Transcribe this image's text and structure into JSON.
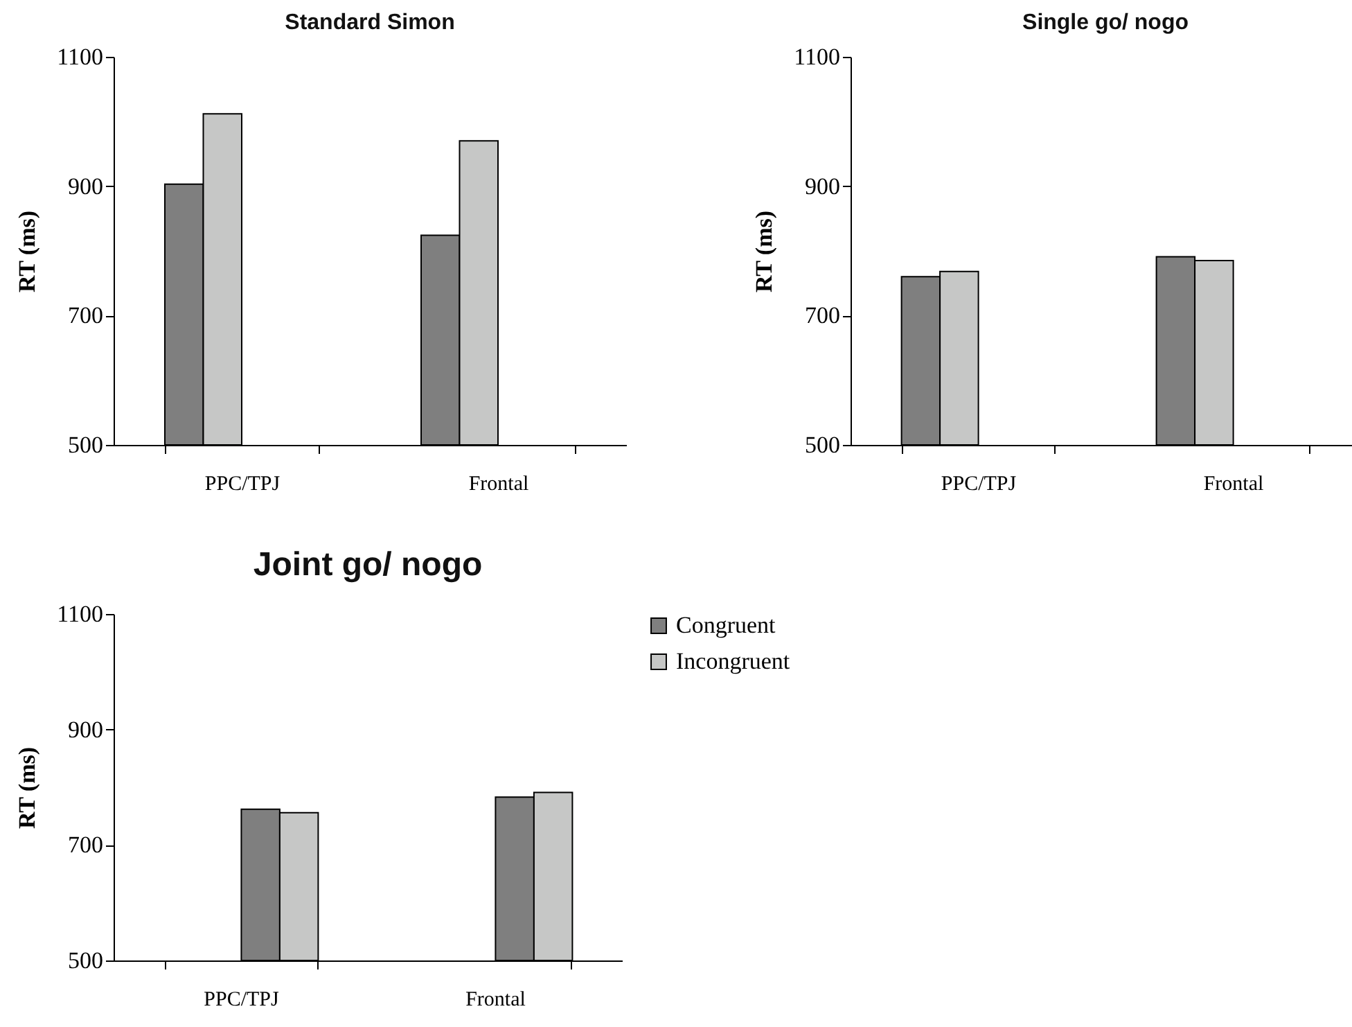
{
  "chart_data": [
    {
      "type": "bar",
      "title": "Standard  Simon",
      "ylabel": "RT (ms)",
      "categories": [
        "PPC/TPJ",
        "Frontal"
      ],
      "ylim": [
        500,
        1100
      ],
      "yticks": [
        500,
        700,
        900,
        1100
      ],
      "series": [
        {
          "color": "#7f7f7f",
          "values": [
            903,
            824
          ]
        },
        {
          "color": "#c6c7c6",
          "values": [
            1012,
            970
          ]
        }
      ]
    },
    {
      "type": "bar",
      "title": "Single go/ nogo",
      "ylabel": "RT (ms)",
      "categories": [
        "PPC/TPJ",
        "Frontal"
      ],
      "ylim": [
        500,
        1100
      ],
      "yticks": [
        500,
        700,
        900,
        1100
      ],
      "series": [
        {
          "color": "#7f7f7f",
          "values": [
            760,
            791
          ]
        },
        {
          "color": "#c6c7c6",
          "values": [
            768,
            785
          ]
        }
      ]
    },
    {
      "type": "bar",
      "title": "Joint go/ nogo",
      "ylabel": "RT (ms)",
      "categories": [
        "PPC/TPJ",
        "Frontal"
      ],
      "ylim": [
        500,
        1100
      ],
      "yticks": [
        500,
        700,
        900,
        1100
      ],
      "legend": "right",
      "series": [
        {
          "name": "Congruent",
          "color": "#7f7f7f",
          "values": [
            762,
            783
          ]
        },
        {
          "name": "Incongruent",
          "color": "#c6c7c6",
          "values": [
            756,
            791
          ]
        }
      ]
    }
  ]
}
